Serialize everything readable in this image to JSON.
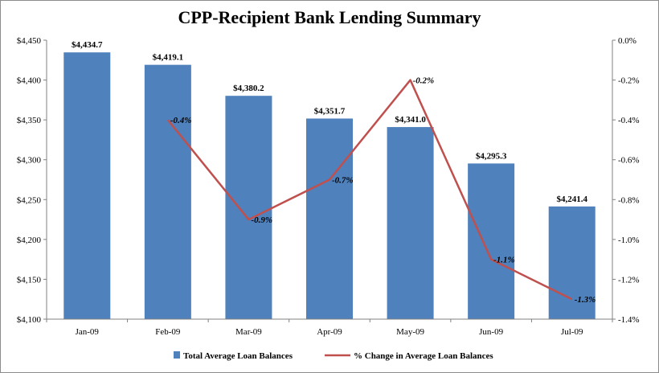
{
  "chart_data": {
    "type": "bar",
    "title": "CPP-Recipient Bank Lending Summary",
    "categories": [
      "Jan-09",
      "Feb-09",
      "Mar-09",
      "Apr-09",
      "May-09",
      "Jun-09",
      "Jul-09"
    ],
    "series": [
      {
        "name": "Total Average Loan Balances",
        "type": "bar",
        "axis": "left",
        "values": [
          4434.7,
          4419.1,
          4380.2,
          4351.7,
          4341.0,
          4295.3,
          4241.4
        ],
        "labels": [
          "$4,434.7",
          "$4,419.1",
          "$4,380.2",
          "$4,351.7",
          "$4,341.0",
          "$4,295.3",
          "$4,241.4"
        ],
        "color": "#4f81bd"
      },
      {
        "name": "% Change in Average Loan Balances",
        "type": "line",
        "axis": "right",
        "values": [
          null,
          -0.4,
          -0.9,
          -0.7,
          -0.2,
          -1.1,
          -1.3
        ],
        "labels": [
          "",
          "-0.4%",
          "-0.9%",
          "-0.7%",
          "-0.2%",
          "-1.1%",
          "-1.3%"
        ],
        "color": "#c0504d"
      }
    ],
    "ylim_left": [
      4100,
      4450
    ],
    "yticks_left": [
      4100,
      4150,
      4200,
      4250,
      4300,
      4350,
      4400,
      4450
    ],
    "ytick_labels_left": [
      "$4,100",
      "$4,150",
      "$4,200",
      "$4,250",
      "$4,300",
      "$4,350",
      "$4,400",
      "$4,450"
    ],
    "ylim_right": [
      -1.4,
      0.0
    ],
    "yticks_right": [
      0.0,
      -0.2,
      -0.4,
      -0.6,
      -0.8,
      -1.0,
      -1.2,
      -1.4
    ],
    "ytick_labels_right": [
      "0.0%",
      "-0.2%",
      "-0.4%",
      "-0.6%",
      "-0.8%",
      "-1.0%",
      "-1.2%",
      "-1.4%"
    ],
    "legend_position": "bottom",
    "grid": false
  }
}
